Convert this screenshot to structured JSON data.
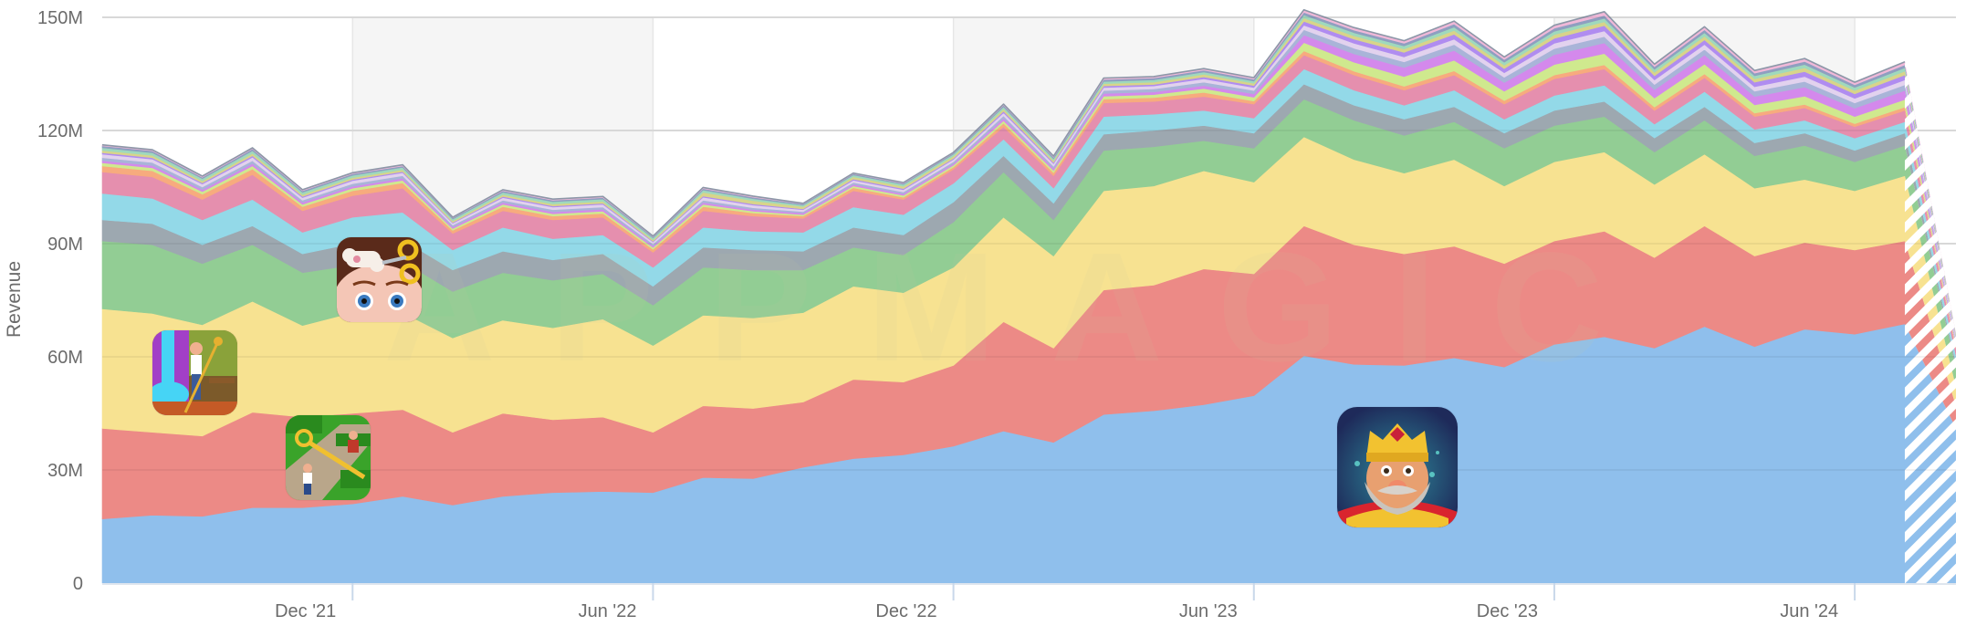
{
  "chart_data": {
    "type": "area",
    "stacked": true,
    "title": "",
    "xlabel": "",
    "ylabel": "Revenue",
    "ylim": [
      0,
      150000000
    ],
    "yticks": [
      0,
      30000000,
      60000000,
      90000000,
      120000000,
      150000000
    ],
    "ytick_labels": [
      "0",
      "30M",
      "60M",
      "90M",
      "120M",
      "150M"
    ],
    "grid": true,
    "x": [
      "Jul '21",
      "Aug '21",
      "Sep '21",
      "Oct '21",
      "Nov '21",
      "Dec '21",
      "Jan '22",
      "Feb '22",
      "Mar '22",
      "Apr '22",
      "May '22",
      "Jun '22",
      "Jul '22",
      "Aug '22",
      "Sep '22",
      "Oct '22",
      "Nov '22",
      "Dec '22",
      "Jan '23",
      "Feb '23",
      "Mar '23",
      "Apr '23",
      "May '23",
      "Jun '23",
      "Jul '23",
      "Aug '23",
      "Sep '23",
      "Oct '23",
      "Nov '23",
      "Dec '23",
      "Jan '24",
      "Feb '24",
      "Mar '24",
      "Apr '24",
      "May '24",
      "Jun '24",
      "Jul '24",
      "Aug '24"
    ],
    "xtick_labels": [
      {
        "at": "Dec '21",
        "label": "Dec '21"
      },
      {
        "at": "Jun '22",
        "label": "Jun '22"
      },
      {
        "at": "Dec '22",
        "label": "Dec '22"
      },
      {
        "at": "Jun '23",
        "label": "Jun '23"
      },
      {
        "at": "Dec '23",
        "label": "Dec '23"
      },
      {
        "at": "Jun '24",
        "label": "Jun '24"
      }
    ],
    "shaded_periods": [
      [
        "Dec '21",
        "Jun '22"
      ],
      [
        "Dec '22",
        "Jun '23"
      ],
      [
        "Dec '23",
        "Jun '24"
      ]
    ],
    "partial_last_point": true,
    "unit": "M",
    "series": [
      {
        "color": "#8fbfec",
        "values": [
          17,
          18,
          17.7,
          20,
          20,
          21,
          23,
          20.7,
          23,
          24,
          24.3,
          24,
          28,
          27.7,
          30.7,
          33,
          34,
          36.3,
          40.3,
          37.3,
          44.7,
          45.7,
          47.3,
          49.7,
          60.3,
          58,
          57.7,
          59.7,
          57.3,
          63.3,
          65.3,
          62.3,
          68,
          62.7,
          67.3,
          66,
          68.7,
          41
        ]
      },
      {
        "color": "#ec8a86",
        "values": [
          24,
          22,
          21.3,
          25.3,
          24,
          24,
          23,
          19.3,
          22,
          19.3,
          19.7,
          16,
          19,
          18.6,
          17.3,
          21,
          19.3,
          21.4,
          29,
          25,
          33,
          33.3,
          36,
          32.3,
          34.4,
          31.7,
          29.6,
          29.6,
          27.4,
          27.4,
          28,
          24,
          26.7,
          24,
          23,
          22.3,
          22,
          6
        ]
      },
      {
        "color": "#f7e291",
        "values": [
          31.7,
          31.5,
          29.5,
          29.4,
          24.3,
          26.7,
          25.7,
          25,
          24.7,
          24.4,
          26,
          23,
          24,
          24,
          23.7,
          24.7,
          23.7,
          26,
          27.7,
          24.4,
          26.3,
          26.3,
          26,
          24.3,
          23.6,
          22.6,
          21.4,
          23,
          20.6,
          21,
          21,
          19.4,
          19,
          18,
          16.7,
          15.7,
          17.3,
          5
        ]
      },
      {
        "color": "#92cd94",
        "values": [
          18,
          18.2,
          16.2,
          15,
          14,
          12.6,
          13.6,
          12.3,
          12.6,
          12.6,
          12,
          10.7,
          12.7,
          12.7,
          11.3,
          10.3,
          10,
          12,
          12,
          9.6,
          10.7,
          10.4,
          8,
          9,
          10,
          10.4,
          10,
          10,
          10,
          9.6,
          9.4,
          8.6,
          9,
          8.6,
          9,
          7.7,
          8,
          5
        ]
      },
      {
        "color": "#9da8b0",
        "values": [
          5.6,
          5.6,
          5,
          5,
          5,
          5.7,
          5.7,
          5.7,
          5.7,
          5.4,
          5.3,
          5,
          5.3,
          5.3,
          5,
          5.3,
          5.3,
          5.3,
          4.3,
          4.4,
          4.3,
          4.3,
          4,
          4,
          4,
          4,
          4.3,
          4,
          4,
          4,
          4,
          3.7,
          3.6,
          3.4,
          3.3,
          3,
          3.3,
          1
        ]
      },
      {
        "color": "#93d9e8",
        "values": [
          7,
          6.7,
          6.6,
          7,
          5.7,
          7,
          7.3,
          5.3,
          6.3,
          5.6,
          5,
          5,
          5.3,
          5,
          5,
          5.4,
          5.4,
          5,
          4.4,
          4,
          4.7,
          4.3,
          4,
          4,
          4,
          4,
          3.7,
          4.4,
          3.7,
          4,
          4.3,
          3.7,
          4,
          3.6,
          3.4,
          3.3,
          3,
          2
        ]
      },
      {
        "color": "#e58fae",
        "values": [
          5.7,
          5.7,
          5.4,
          6.6,
          5.7,
          5.7,
          6.4,
          4.4,
          4.4,
          5,
          4.7,
          4,
          4.4,
          4,
          3.7,
          4.3,
          4,
          3.7,
          3.3,
          3.3,
          3.6,
          3.4,
          3.7,
          3.7,
          3.7,
          4,
          4,
          4,
          4,
          4.4,
          4.3,
          3.6,
          3.7,
          3.4,
          3.3,
          3,
          3,
          2
        ]
      },
      {
        "color": "#f7ab7e",
        "values": [
          1.6,
          1.6,
          1.4,
          1.5,
          1.1,
          1.3,
          1.4,
          0.8,
          1.1,
          1,
          1,
          0.8,
          1.1,
          0.8,
          0.6,
          0.8,
          0.6,
          0.6,
          0.9,
          0.8,
          1,
          1,
          1.1,
          0.8,
          1.1,
          1,
          1,
          1.1,
          0.9,
          1,
          1.1,
          0.9,
          1,
          0.9,
          0.9,
          0.8,
          0.9,
          0.5
        ]
      },
      {
        "color": "#cfe98e",
        "values": [
          0.8,
          0.8,
          0.7,
          0.8,
          0.6,
          0.7,
          0.7,
          0.5,
          0.6,
          0.6,
          0.6,
          0.5,
          0.6,
          0.5,
          0.4,
          0.5,
          0.5,
          0.5,
          0.7,
          0.6,
          0.8,
          0.8,
          1,
          1,
          2.2,
          2.4,
          2.6,
          2.8,
          2.5,
          2.8,
          3,
          2.4,
          2.6,
          2.2,
          2.2,
          1.9,
          2,
          0.5
        ]
      },
      {
        "color": "#d489ec",
        "values": [
          0.6,
          0.6,
          0.5,
          0.6,
          0.5,
          0.5,
          0.5,
          0.4,
          0.5,
          0.5,
          0.5,
          0.4,
          0.5,
          0.4,
          0.4,
          0.4,
          0.4,
          0.4,
          0.6,
          0.5,
          0.7,
          0.7,
          0.8,
          0.9,
          2,
          2.2,
          2.4,
          2.6,
          2.3,
          2.6,
          2.8,
          2.2,
          2.4,
          2.2,
          2.4,
          2.2,
          2.4,
          0.5
        ]
      },
      {
        "color": "#a9b4d8",
        "values": [
          0.8,
          0.8,
          0.7,
          0.8,
          0.6,
          0.7,
          0.7,
          0.5,
          0.6,
          0.6,
          0.6,
          0.5,
          0.6,
          0.5,
          0.4,
          0.5,
          0.5,
          0.5,
          0.7,
          0.6,
          0.8,
          0.8,
          0.9,
          0.9,
          1.4,
          1.5,
          1.5,
          1.6,
          1.4,
          1.6,
          1.7,
          1.4,
          1.5,
          1.4,
          1.5,
          1.4,
          1.5,
          0.5
        ]
      },
      {
        "color": "#e2d2ee",
        "values": [
          0.9,
          0.9,
          0.8,
          0.9,
          0.7,
          0.8,
          0.8,
          0.5,
          0.7,
          0.7,
          0.7,
          0.5,
          0.8,
          0.7,
          0.5,
          0.6,
          0.6,
          0.6,
          0.8,
          0.7,
          0.8,
          0.8,
          0.9,
          0.8,
          1.2,
          1.3,
          1.3,
          1.4,
          1.2,
          1.4,
          1.5,
          1.2,
          1.3,
          1.2,
          1.3,
          1.2,
          1.3,
          0.5
        ]
      },
      {
        "color": "#b08cf0",
        "values": [
          0.4,
          0.4,
          0.3,
          0.4,
          0.3,
          0.3,
          0.3,
          0.2,
          0.3,
          0.3,
          0.3,
          0.2,
          0.3,
          0.3,
          0.2,
          0.3,
          0.3,
          0.3,
          0.4,
          0.3,
          0.4,
          0.4,
          0.5,
          0.5,
          1,
          1.1,
          1.2,
          1.3,
          1.1,
          1.3,
          1.4,
          1.1,
          1.2,
          1.2,
          1.3,
          1.2,
          1.3,
          0.4
        ]
      },
      {
        "color": "#d8d48a",
        "values": [
          0.6,
          0.6,
          0.5,
          0.6,
          0.5,
          0.5,
          0.5,
          0.4,
          0.5,
          0.5,
          0.5,
          0.4,
          1,
          0.9,
          0.6,
          0.6,
          0.6,
          0.6,
          0.6,
          0.5,
          0.6,
          0.6,
          0.7,
          0.6,
          0.9,
          0.9,
          0.9,
          1,
          0.9,
          1,
          1,
          0.9,
          1,
          0.9,
          1,
          0.9,
          1,
          0.4
        ]
      },
      {
        "color": "#9fd9bd",
        "values": [
          0.7,
          0.7,
          0.6,
          0.7,
          0.6,
          0.6,
          0.6,
          0.5,
          0.6,
          0.6,
          0.6,
          0.5,
          0.6,
          0.5,
          0.4,
          0.5,
          0.5,
          0.5,
          0.6,
          0.5,
          0.6,
          0.6,
          0.6,
          0.6,
          0.8,
          0.8,
          0.8,
          0.9,
          0.8,
          0.9,
          0.9,
          0.8,
          0.9,
          0.8,
          0.9,
          0.8,
          0.9,
          0.3
        ]
      },
      {
        "color": "#8e9fc0",
        "values": [
          0.5,
          0.5,
          0.4,
          0.5,
          0.4,
          0.4,
          0.4,
          0.3,
          0.4,
          0.4,
          0.4,
          0.3,
          0.4,
          0.4,
          0.3,
          0.3,
          0.3,
          0.3,
          0.4,
          0.4,
          0.5,
          0.5,
          0.5,
          0.5,
          0.7,
          0.7,
          0.7,
          0.8,
          0.7,
          0.8,
          0.8,
          0.7,
          0.8,
          0.7,
          0.8,
          0.7,
          0.8,
          0.3
        ]
      },
      {
        "color": "#f0b8d8",
        "values": [
          0.3,
          0.3,
          0.3,
          0.3,
          0.3,
          0.3,
          0.3,
          0.2,
          0.3,
          0.3,
          0.3,
          0.2,
          0.3,
          0.3,
          0.2,
          0.2,
          0.2,
          0.2,
          0.3,
          0.3,
          0.4,
          0.4,
          0.4,
          0.4,
          0.7,
          0.7,
          0.7,
          0.8,
          0.7,
          0.8,
          1,
          0.7,
          0.8,
          0.7,
          0.8,
          0.7,
          0.8,
          0.3
        ]
      }
    ]
  },
  "axes": {
    "y_title": "Revenue"
  },
  "watermark": "APPMAGIC",
  "icons": [
    {
      "name": "homescapes-app-icon",
      "colors": [
        "#a23fc7",
        "#46d4f5",
        "#7c9a2e"
      ]
    },
    {
      "name": "makeover-app-icon",
      "colors": [
        "#5a2a1a",
        "#f4c6b6",
        "#f0c020"
      ]
    },
    {
      "name": "gardenscapes-app-icon",
      "colors": [
        "#3aa32a",
        "#b9a68a",
        "#f0c030"
      ]
    },
    {
      "name": "royal-match-king-icon",
      "colors": [
        "#1e2a5a",
        "#f2c230",
        "#d9242e"
      ]
    }
  ],
  "colors": {
    "grid": "#e4e4e4",
    "band": "#f5f5f5",
    "tick": "#c9d8ea",
    "text": "#6b6b6b"
  }
}
